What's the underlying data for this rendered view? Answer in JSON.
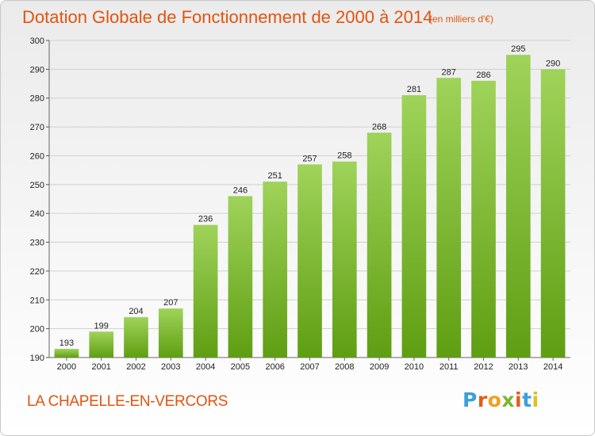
{
  "title": "Dotation Globale de Fonctionnement de 2000 à 2014",
  "subtitle": "(en milliers d'€)",
  "place": "LA CHAPELLE-EN-VERCORS",
  "logo": {
    "text": "Proxiti",
    "colors": [
      "#3aa0d8",
      "#e25d1a",
      "#f0a020",
      "#7ab632",
      "#e25d1a",
      "#3aa0d8",
      "#e0c020"
    ]
  },
  "colors": {
    "accent": "#e2540f",
    "bar_top": "#9fd35a",
    "bar_bottom": "#5f9e12",
    "grid": "#d0d0d0"
  },
  "chart_data": {
    "type": "bar",
    "title": "Dotation Globale de Fonctionnement de 2000 à 2014",
    "xlabel": "",
    "ylabel": "",
    "categories": [
      "2000",
      "2001",
      "2002",
      "2003",
      "2004",
      "2005",
      "2006",
      "2007",
      "2008",
      "2009",
      "2010",
      "2011",
      "2012",
      "2013",
      "2014"
    ],
    "values": [
      193,
      199,
      204,
      207,
      236,
      246,
      251,
      257,
      258,
      268,
      281,
      287,
      286,
      295,
      290
    ],
    "ylim": [
      190,
      300
    ],
    "yticks": [
      190,
      200,
      210,
      220,
      230,
      240,
      250,
      260,
      270,
      280,
      290,
      300
    ],
    "grid": true
  }
}
